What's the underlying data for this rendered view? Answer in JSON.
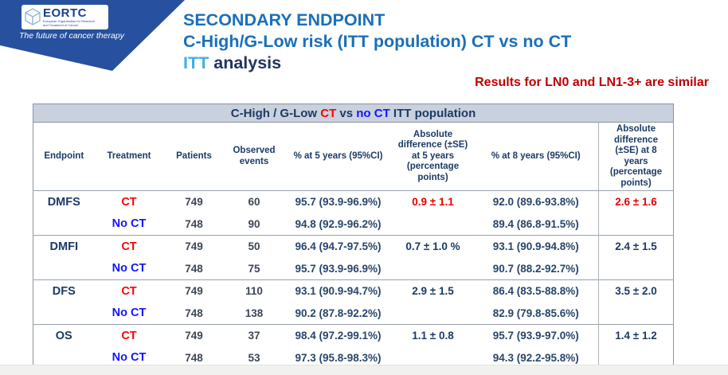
{
  "logo": {
    "acronym": "EORTC",
    "org_line1": "European Organisation for Research",
    "org_line2": "and Treatment of Cancer",
    "tagline": "The future of cancer therapy"
  },
  "header": {
    "title_line1": "SECONDARY ENDPOINT",
    "title_line2": "C-High/G-Low risk (ITT population) CT vs no CT",
    "title_line3_itt": "ITT",
    "title_line3_rest": "analysis",
    "note": "Results for LN0 and LN1-3+ are similar"
  },
  "table": {
    "title": {
      "prefix": "C-High / G-Low ",
      "ct": "CT",
      "vs": " vs ",
      "noct": "no CT",
      "suffix": " ITT population"
    },
    "columns": [
      "Endpoint",
      "Treatment",
      "Patients",
      "Observed events",
      "% at 5 years (95%CI)",
      "Absolute difference (±SE) at 5 years (percentage points)",
      "% at 8 years (95%CI)",
      "Absolute difference (±SE) at 8 years (percentage points)"
    ],
    "rows": [
      {
        "endpoint": "DMFS",
        "treatment": "CT",
        "treatment_color": "red",
        "patients": "749",
        "events": "60",
        "pct_5y": "95.7 (93.9-96.9%)",
        "diff_5y": "0.9 ± 1.1",
        "diff_5y_red": true,
        "pct_8y": "92.0 (89.6-93.8%)",
        "diff_8y": "2.6 ± 1.6",
        "diff_8y_red": true,
        "group_start": false
      },
      {
        "endpoint": "",
        "treatment": "No CT",
        "treatment_color": "blue",
        "patients": "748",
        "events": "90",
        "pct_5y": "94.8 (92.9-96.2%)",
        "diff_5y": "",
        "diff_5y_red": false,
        "pct_8y": "89.4 (86.8-91.5%)",
        "diff_8y": "",
        "diff_8y_red": false,
        "group_start": false
      },
      {
        "endpoint": "DMFI",
        "treatment": "CT",
        "treatment_color": "red",
        "patients": "749",
        "events": "50",
        "pct_5y": "96.4 (94.7-97.5%)",
        "diff_5y": "0.7 ± 1.0 %",
        "diff_5y_red": false,
        "pct_8y": "93.1 (90.9-94.8%)",
        "diff_8y": "2.4 ± 1.5",
        "diff_8y_red": false,
        "group_start": true
      },
      {
        "endpoint": "",
        "treatment": "No CT",
        "treatment_color": "blue",
        "patients": "748",
        "events": "75",
        "pct_5y": "95.7 (93.9-96.9%)",
        "diff_5y": "",
        "diff_5y_red": false,
        "pct_8y": "90.7 (88.2-92.7%)",
        "diff_8y": "",
        "diff_8y_red": false,
        "group_start": false
      },
      {
        "endpoint": "DFS",
        "treatment": "CT",
        "treatment_color": "red",
        "patients": "749",
        "events": "110",
        "pct_5y": "93.1 (90.9-94.7%)",
        "diff_5y": "2.9 ± 1.5",
        "diff_5y_red": false,
        "pct_8y": "86.4 (83.5-88.8%)",
        "diff_8y": "3.5 ± 2.0",
        "diff_8y_red": false,
        "group_start": true
      },
      {
        "endpoint": "",
        "treatment": "No CT",
        "treatment_color": "blue",
        "patients": "748",
        "events": "138",
        "pct_5y": "90.2 (87.8-92.2%)",
        "diff_5y": "",
        "diff_5y_red": false,
        "pct_8y": "82.9 (79.8-85.6%)",
        "diff_8y": "",
        "diff_8y_red": false,
        "group_start": false
      },
      {
        "endpoint": "OS",
        "treatment": "CT",
        "treatment_color": "red",
        "patients": "749",
        "events": "37",
        "pct_5y": "98.4 (97.2-99.1%)",
        "diff_5y": "1.1 ± 0.8",
        "diff_5y_red": false,
        "pct_8y": "95.7 (93.9-97.0%)",
        "diff_8y": "1.4 ± 1.2",
        "diff_8y_red": false,
        "group_start": true
      },
      {
        "endpoint": "",
        "treatment": "No CT",
        "treatment_color": "blue",
        "patients": "748",
        "events": "53",
        "pct_5y": "97.3 (95.8-98.3%)",
        "diff_5y": "",
        "diff_5y_red": false,
        "pct_8y": "94.3 (92.2-95.8%)",
        "diff_8y": "",
        "diff_8y_red": false,
        "group_start": false
      }
    ]
  },
  "colors": {
    "banner_blue": "#27519e",
    "title_blue": "#1a6fba",
    "title_dark_navy": "#1f3460",
    "itt_light_blue": "#41aee8",
    "note_red": "#c00000",
    "ct_red": "#ff0000",
    "no_ct_blue": "#1414ff",
    "table_navy": "#1c3a66",
    "table_titlebar_bg": "#c9d1de"
  }
}
